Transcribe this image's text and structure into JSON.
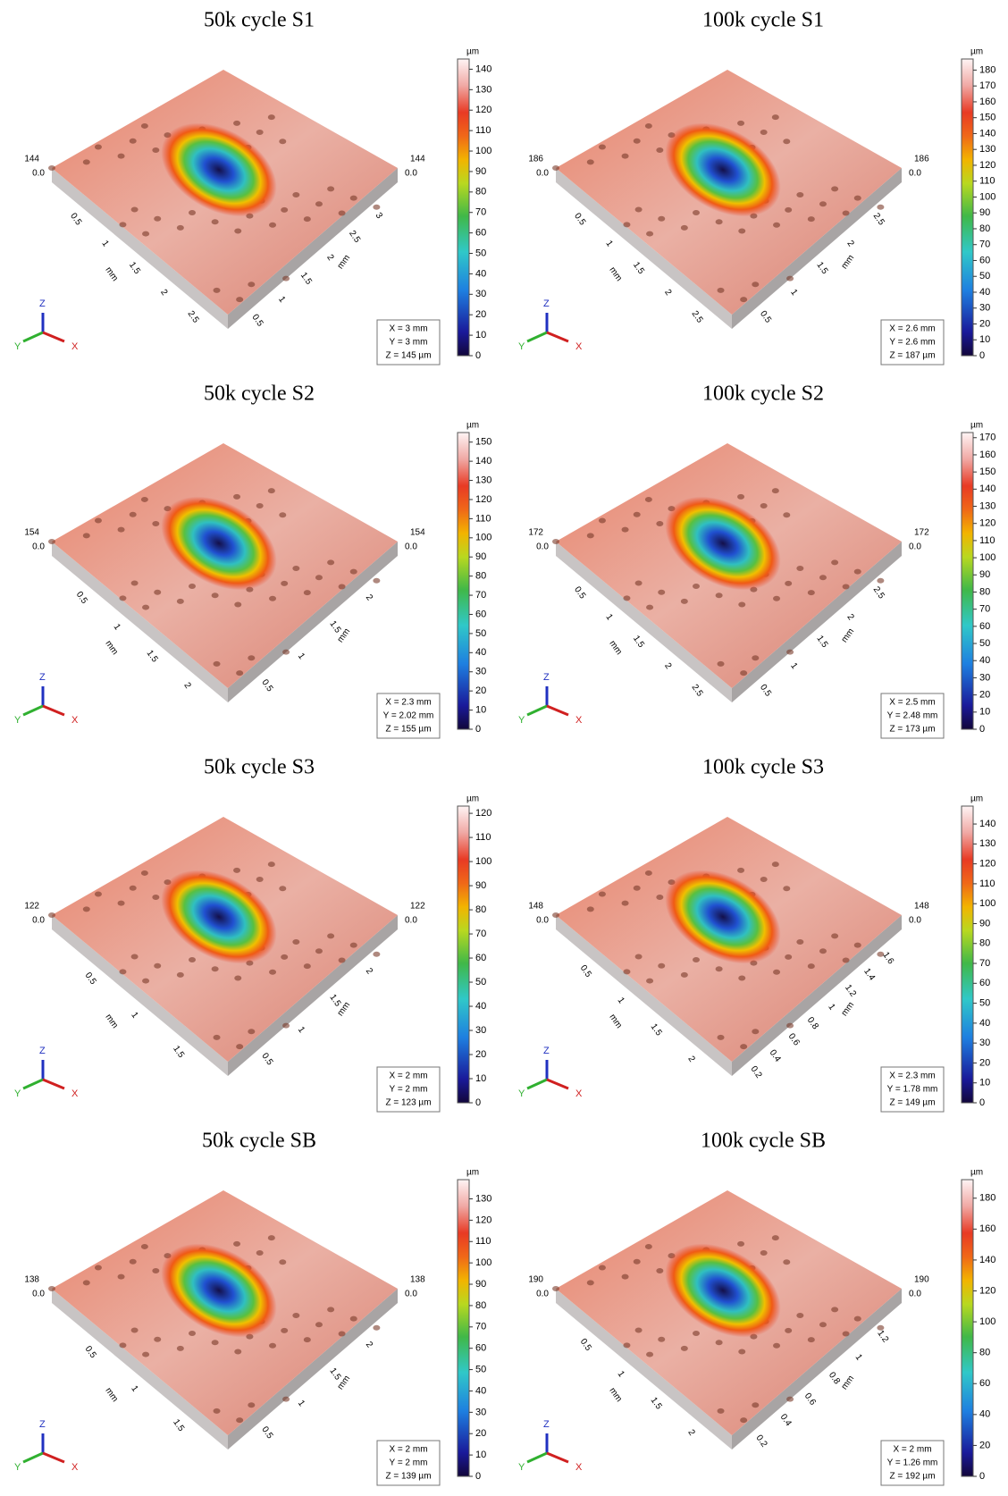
{
  "unit": "µm",
  "axis_unit": "mm",
  "triad": [
    "X",
    "Y",
    "Z"
  ],
  "panels": [
    {
      "title": "50k cycle S1",
      "zlim": [
        0,
        145
      ],
      "colorbar_ticks": [
        0,
        10,
        20,
        30,
        40,
        50,
        60,
        70,
        80,
        90,
        100,
        110,
        120,
        130,
        140
      ],
      "height_label": "144",
      "zero_label": "0.0",
      "left_axis": [
        "0.5",
        "1",
        "1.5",
        "2",
        "2.5"
      ],
      "right_axis": [
        "0.5",
        "1",
        "1.5",
        "2",
        "2.5",
        "3"
      ],
      "info": [
        "X = 3 mm",
        "Y = 3 mm",
        "Z = 145 µm"
      ]
    },
    {
      "title": "100k cycle S1",
      "zlim": [
        0,
        187
      ],
      "colorbar_ticks": [
        0,
        10,
        20,
        30,
        40,
        50,
        60,
        70,
        80,
        90,
        100,
        110,
        120,
        130,
        140,
        150,
        160,
        170,
        180
      ],
      "height_label": "186",
      "zero_label": "0.0",
      "left_axis": [
        "0.5",
        "1",
        "1.5",
        "2",
        "2.5"
      ],
      "right_axis": [
        "0.5",
        "1",
        "1.5",
        "2",
        "2.5"
      ],
      "info": [
        "X = 2.6 mm",
        "Y = 2.6 mm",
        "Z = 187 µm"
      ]
    },
    {
      "title": "50k cycle S2",
      "zlim": [
        0,
        155
      ],
      "colorbar_ticks": [
        0,
        10,
        20,
        30,
        40,
        50,
        60,
        70,
        80,
        90,
        100,
        110,
        120,
        130,
        140,
        150
      ],
      "height_label": "154",
      "zero_label": "0.0",
      "left_axis": [
        "0.5",
        "1",
        "1.5",
        "2"
      ],
      "right_axis": [
        "0.5",
        "1",
        "1.5",
        "2"
      ],
      "info": [
        "X = 2.3 mm",
        "Y = 2.02 mm",
        "Z = 155 µm"
      ]
    },
    {
      "title": "100k cycle S2",
      "zlim": [
        0,
        173
      ],
      "colorbar_ticks": [
        0,
        10,
        20,
        30,
        40,
        50,
        60,
        70,
        80,
        90,
        100,
        110,
        120,
        130,
        140,
        150,
        160,
        170
      ],
      "height_label": "172",
      "zero_label": "0.0",
      "left_axis": [
        "0.5",
        "1",
        "1.5",
        "2",
        "2.5"
      ],
      "right_axis": [
        "0.5",
        "1",
        "1.5",
        "2",
        "2.5"
      ],
      "info": [
        "X = 2.5 mm",
        "Y = 2.48 mm",
        "Z = 173 µm"
      ]
    },
    {
      "title": "50k cycle S3",
      "zlim": [
        0,
        123
      ],
      "colorbar_ticks": [
        0,
        10,
        20,
        30,
        40,
        50,
        60,
        70,
        80,
        90,
        100,
        110,
        120
      ],
      "height_label": "122",
      "zero_label": "0.0",
      "left_axis": [
        "0.5",
        "1",
        "1.5"
      ],
      "right_axis": [
        "0.5",
        "1",
        "1.5",
        "2"
      ],
      "info": [
        "X = 2 mm",
        "Y = 2 mm",
        "Z = 123 µm"
      ]
    },
    {
      "title": "100k cycle S3",
      "zlim": [
        0,
        149
      ],
      "colorbar_ticks": [
        0,
        10,
        20,
        30,
        40,
        50,
        60,
        70,
        80,
        90,
        100,
        110,
        120,
        130,
        140
      ],
      "height_label": "148",
      "zero_label": "0.0",
      "left_axis": [
        "0.5",
        "1",
        "1.5",
        "2"
      ],
      "right_axis": [
        "0.2",
        "0.4",
        "0.6",
        "0.8",
        "1",
        "1.2",
        "1.4",
        "1.6"
      ],
      "info": [
        "X = 2.3 mm",
        "Y = 1.78 mm",
        "Z = 149 µm"
      ]
    },
    {
      "title": "50k cycle SB",
      "zlim": [
        0,
        139
      ],
      "colorbar_ticks": [
        0,
        10,
        20,
        30,
        40,
        50,
        60,
        70,
        80,
        90,
        100,
        110,
        120,
        130
      ],
      "height_label": "138",
      "zero_label": "0.0",
      "left_axis": [
        "0.5",
        "1",
        "1.5"
      ],
      "right_axis": [
        "0.5",
        "1",
        "1.5",
        "2"
      ],
      "info": [
        "X = 2 mm",
        "Y = 2 mm",
        "Z = 139 µm"
      ]
    },
    {
      "title": "100k cycle SB",
      "zlim": [
        0,
        192
      ],
      "colorbar_ticks": [
        0,
        20,
        40,
        60,
        80,
        100,
        120,
        140,
        160,
        180
      ],
      "height_label": "190",
      "zero_label": "0.0",
      "left_axis": [
        "0.5",
        "1",
        "1.5",
        "2"
      ],
      "right_axis": [
        "0.2",
        "0.4",
        "0.6",
        "0.8",
        "1",
        "1.2"
      ],
      "info": [
        "X = 2 mm",
        "Y = 1.26 mm",
        "Z = 192 µm"
      ]
    }
  ]
}
